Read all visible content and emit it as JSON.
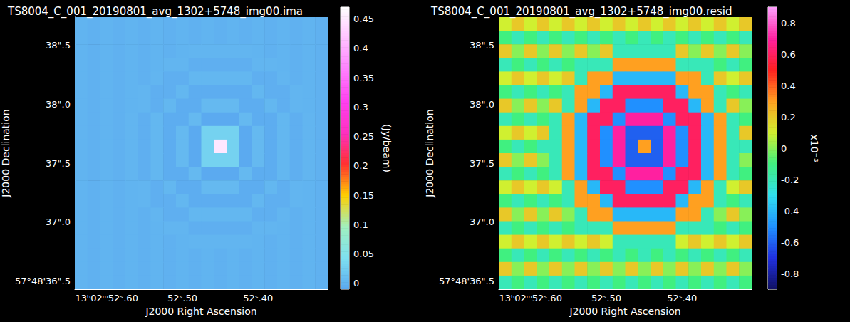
{
  "chart_data": [
    {
      "type": "heatmap",
      "title": "TS8004_C_001_20190801_avg_1302+5748_img00.ima",
      "x_label": "J2000 Right Ascension",
      "y_label": "J2000 Declination",
      "xlim": [
        52.642,
        52.308
      ],
      "ylim": [
        36.43,
        38.74
      ],
      "xticks": [
        {
          "value": 52.6,
          "label": "13ʰ02ᵐ52ˢ.60"
        },
        {
          "value": 52.5,
          "label": "52ˢ.50"
        },
        {
          "value": 52.4,
          "label": "52ˢ.40"
        }
      ],
      "yticks": [
        {
          "value": 36.5,
          "label": "57°48'36\".5"
        },
        {
          "value": 37.0,
          "label": "37\".0"
        },
        {
          "value": 37.5,
          "label": "37\".5"
        },
        {
          "value": 38.0,
          "label": "38\".0"
        },
        {
          "value": 38.5,
          "label": "38\".5"
        }
      ],
      "cells": [
        [
          0.001,
          -0.001,
          0.001,
          -0.001,
          0.001,
          -0.001,
          0.001,
          -0.001,
          0.001,
          -0.001,
          0.001,
          -0.001,
          0.001,
          -0.001,
          0.001,
          -0.001,
          0.001,
          -0.001,
          0.001,
          -0.001
        ],
        [
          0.001,
          -0.001,
          0.001,
          -0.001,
          0.001,
          -0.001,
          0.001,
          -0.001,
          0.001,
          -0.001,
          0.001,
          -0.001,
          0.001,
          -0.001,
          0.001,
          -0.001,
          0.001,
          -0.001,
          0.001,
          -0.001
        ],
        [
          0.001,
          -0.001,
          0.001,
          -0.001,
          0.001,
          -0.001,
          0.001,
          -0.001,
          0.001,
          0.002,
          0.002,
          0.002,
          0.002,
          0.002,
          0.001,
          -0.001,
          0.001,
          -0.001,
          0.001,
          -0.001
        ],
        [
          0.001,
          -0.001,
          0.001,
          -0.001,
          0.001,
          -0.001,
          0.001,
          0.002,
          0.002,
          -0.003,
          -0.003,
          -0.003,
          -0.003,
          -0.003,
          0.002,
          0.002,
          0.001,
          -0.001,
          0.001,
          -0.001
        ],
        [
          0.001,
          -0.001,
          0.001,
          -0.001,
          0.001,
          -0.001,
          0.002,
          -0.003,
          -0.003,
          0.004,
          0.004,
          0.004,
          0.004,
          0.004,
          -0.003,
          -0.003,
          0.002,
          -0.001,
          0.001,
          -0.001
        ],
        [
          0.001,
          -0.001,
          0.001,
          -0.001,
          0.001,
          0.002,
          -0.003,
          -0.003,
          0.004,
          -0.005,
          -0.005,
          -0.005,
          -0.005,
          -0.005,
          0.004,
          -0.003,
          -0.003,
          0.002,
          0.001,
          -0.001
        ],
        [
          0.001,
          -0.001,
          0.001,
          -0.001,
          0.001,
          0.002,
          -0.003,
          0.004,
          -0.005,
          -0.005,
          0.006,
          0.006,
          0.006,
          -0.005,
          -0.005,
          0.004,
          -0.003,
          0.002,
          0.001,
          -0.001
        ],
        [
          0.001,
          -0.001,
          0.001,
          -0.001,
          0.002,
          -0.003,
          0.004,
          -0.005,
          -0.005,
          0.006,
          -0.008,
          -0.008,
          -0.008,
          0.006,
          -0.005,
          -0.005,
          0.004,
          -0.003,
          0.002,
          -0.001
        ],
        [
          0.001,
          -0.001,
          0.001,
          -0.001,
          0.002,
          -0.003,
          0.004,
          -0.005,
          0.006,
          -0.008,
          0.03,
          0.03,
          0.03,
          -0.008,
          0.006,
          -0.005,
          0.004,
          -0.003,
          0.002,
          -0.001
        ],
        [
          0.001,
          -0.001,
          0.001,
          -0.001,
          0.002,
          -0.003,
          0.004,
          -0.005,
          0.006,
          -0.008,
          0.03,
          0.45,
          0.03,
          -0.008,
          0.006,
          -0.005,
          0.004,
          -0.003,
          0.002,
          -0.001
        ],
        [
          0.001,
          -0.001,
          0.001,
          -0.001,
          0.002,
          -0.003,
          0.004,
          -0.005,
          0.006,
          -0.008,
          0.03,
          0.03,
          0.03,
          -0.008,
          0.006,
          -0.005,
          0.004,
          -0.003,
          0.002,
          -0.001
        ],
        [
          0.001,
          -0.001,
          0.001,
          -0.001,
          0.002,
          -0.003,
          0.004,
          -0.005,
          -0.005,
          0.006,
          -0.008,
          -0.008,
          -0.008,
          0.006,
          -0.005,
          -0.005,
          0.004,
          -0.003,
          0.002,
          -0.001
        ],
        [
          0.001,
          -0.001,
          0.001,
          -0.001,
          0.001,
          0.002,
          -0.003,
          0.004,
          -0.005,
          -0.005,
          0.006,
          0.006,
          0.006,
          -0.005,
          -0.005,
          0.004,
          -0.003,
          0.002,
          0.001,
          -0.001
        ],
        [
          0.001,
          -0.001,
          0.001,
          -0.001,
          0.001,
          0.002,
          -0.003,
          -0.003,
          0.004,
          -0.005,
          -0.005,
          -0.005,
          -0.005,
          -0.005,
          0.004,
          -0.003,
          -0.003,
          0.002,
          0.001,
          -0.001
        ],
        [
          0.001,
          -0.001,
          0.001,
          -0.001,
          0.001,
          -0.001,
          0.002,
          -0.003,
          -0.003,
          0.004,
          0.004,
          0.004,
          0.004,
          0.004,
          -0.003,
          -0.003,
          0.002,
          -0.001,
          0.001,
          -0.001
        ],
        [
          0.001,
          -0.001,
          0.001,
          -0.001,
          0.001,
          -0.001,
          0.001,
          0.002,
          0.002,
          -0.003,
          -0.003,
          -0.003,
          -0.003,
          -0.003,
          0.002,
          0.002,
          0.001,
          -0.001,
          0.001,
          -0.001
        ],
        [
          0.001,
          -0.001,
          0.001,
          -0.001,
          0.001,
          -0.001,
          0.001,
          -0.001,
          0.001,
          0.002,
          0.002,
          0.002,
          0.002,
          0.002,
          0.001,
          -0.001,
          0.001,
          -0.001,
          0.001,
          -0.001
        ],
        [
          0.001,
          -0.001,
          0.001,
          -0.001,
          0.001,
          -0.001,
          0.001,
          -0.001,
          0.001,
          -0.001,
          0.001,
          -0.001,
          0.001,
          -0.001,
          0.001,
          -0.001,
          0.001,
          -0.001,
          0.001,
          -0.001
        ],
        [
          0.001,
          -0.001,
          0.001,
          -0.001,
          0.001,
          -0.001,
          0.001,
          -0.001,
          0.001,
          -0.001,
          0.001,
          -0.001,
          0.001,
          -0.001,
          0.001,
          -0.001,
          0.001,
          -0.001,
          0.001,
          -0.001
        ],
        [
          0.001,
          -0.001,
          0.001,
          -0.001,
          0.001,
          -0.001,
          0.001,
          -0.001,
          0.001,
          -0.001,
          0.001,
          -0.001,
          0.001,
          -0.001,
          0.001,
          -0.001,
          0.001,
          -0.001,
          0.001,
          -0.001
        ]
      ],
      "colorbar": {
        "label": "(Jy/beam)",
        "range": [
          -0.01,
          0.47
        ],
        "ticks": [
          0,
          0.05,
          0.1,
          0.15,
          0.2,
          0.25,
          0.3,
          0.35,
          0.4,
          0.45
        ],
        "colors": [
          "#5aa8f0",
          "#7ee0f0",
          "#a0f0c0",
          "#ffd000",
          "#ff3030",
          "#ff30c0",
          "#ff40f0",
          "#ff80ff",
          "#ffc0ff",
          "#ffffff"
        ]
      }
    },
    {
      "type": "heatmap",
      "title": "TS8004_C_001_20190801_avg_1302+5748_img00.resid",
      "x_label": "J2000 Right Ascension",
      "y_label": "J2000 Declination",
      "xlim": [
        52.642,
        52.308
      ],
      "ylim": [
        36.43,
        38.74
      ],
      "xticks": [
        {
          "value": 52.6,
          "label": "13ʰ02ᵐ52ˢ.60"
        },
        {
          "value": 52.5,
          "label": "52ˢ.50"
        },
        {
          "value": 52.4,
          "label": "52ˢ.40"
        }
      ],
      "yticks": [
        {
          "value": 36.5,
          "label": "57°48'36\".5"
        },
        {
          "value": 37.0,
          "label": "37\".0"
        },
        {
          "value": 37.5,
          "label": "37\".5"
        },
        {
          "value": 38.0,
          "label": "38\".0"
        },
        {
          "value": 38.5,
          "label": "38\".5"
        }
      ],
      "cells": [
        [
          0.1,
          0.2,
          0.1,
          0.2,
          0.1,
          0.2,
          0.1,
          0.2,
          0.1,
          0.2,
          0.1,
          0.2,
          0.1,
          0.2,
          0.1,
          0.2,
          0.1,
          0.2,
          0.1,
          0.2
        ],
        [
          -0.1,
          -0.2,
          -0.1,
          -0.2,
          -0.1,
          -0.2,
          -0.1,
          -0.2,
          -0.1,
          -0.2,
          -0.1,
          -0.2,
          -0.1,
          -0.2,
          -0.1,
          -0.2,
          -0.1,
          -0.2,
          -0.1,
          -0.2
        ],
        [
          0.2,
          0,
          0.2,
          0,
          0.2,
          0,
          0.2,
          0,
          0.2,
          -0.2,
          -0.2,
          -0.2,
          -0.2,
          -0.2,
          0.2,
          0,
          0.2,
          0,
          0.2,
          0
        ],
        [
          -0.2,
          -0.1,
          -0.2,
          -0.1,
          -0.2,
          -0.1,
          -0.2,
          -0.2,
          -0.2,
          0.3,
          0.3,
          0.3,
          0.3,
          0.3,
          -0.2,
          -0.2,
          -0.2,
          -0.1,
          -0.2,
          -0.1
        ],
        [
          0.1,
          0.2,
          0.1,
          0.2,
          0.1,
          0.2,
          -0.2,
          0.3,
          0.3,
          -0.4,
          -0.4,
          -0.4,
          -0.4,
          -0.4,
          0.3,
          0.3,
          -0.2,
          0.2,
          0.1,
          0.2
        ],
        [
          -0.1,
          -0.2,
          -0.1,
          -0.2,
          -0.1,
          -0.2,
          0.3,
          0.3,
          -0.4,
          0.6,
          0.6,
          0.6,
          0.6,
          0.6,
          -0.4,
          0.3,
          0.3,
          -0.2,
          -0.1,
          -0.2
        ],
        [
          0.2,
          0,
          0.2,
          0,
          0.2,
          -0.2,
          0.3,
          -0.4,
          0.6,
          0.6,
          -0.5,
          -0.5,
          -0.5,
          0.6,
          0.6,
          -0.4,
          0.3,
          -0.2,
          0.2,
          0
        ],
        [
          -0.2,
          -0.1,
          -0.2,
          -0.1,
          -0.2,
          0.3,
          -0.4,
          0.6,
          0.6,
          -0.5,
          0.7,
          0.7,
          0.7,
          -0.5,
          0.6,
          0.6,
          -0.4,
          0.3,
          -0.2,
          -0.1
        ],
        [
          0.1,
          0.2,
          0.1,
          0.2,
          -0.2,
          0.3,
          -0.4,
          0.6,
          -0.5,
          0.7,
          -0.6,
          -0.6,
          -0.6,
          0.7,
          -0.5,
          0.6,
          -0.4,
          0.3,
          -0.2,
          0.2
        ],
        [
          -0.1,
          -0.2,
          -0.1,
          -0.2,
          -0.2,
          0.3,
          -0.4,
          0.6,
          -0.5,
          0.7,
          -0.6,
          0.3,
          -0.6,
          0.7,
          -0.5,
          0.6,
          -0.4,
          0.3,
          -0.2,
          -0.2
        ],
        [
          0.2,
          0,
          0.2,
          0,
          -0.2,
          0.3,
          -0.4,
          0.6,
          -0.5,
          0.7,
          -0.6,
          -0.6,
          -0.6,
          0.7,
          -0.5,
          0.6,
          -0.4,
          0.3,
          -0.2,
          0
        ],
        [
          -0.2,
          -0.1,
          -0.2,
          -0.1,
          -0.2,
          0.3,
          -0.4,
          0.6,
          0.6,
          -0.5,
          0.7,
          0.7,
          0.7,
          -0.5,
          0.6,
          0.6,
          -0.4,
          0.3,
          -0.2,
          -0.1
        ],
        [
          0.1,
          0.2,
          0.1,
          0.2,
          0.1,
          -0.2,
          0.3,
          -0.4,
          0.6,
          0.6,
          -0.5,
          -0.5,
          -0.5,
          0.6,
          0.6,
          -0.4,
          0.3,
          -0.2,
          0.1,
          0.2
        ],
        [
          -0.1,
          -0.2,
          -0.1,
          -0.2,
          -0.1,
          -0.2,
          0.3,
          0.3,
          -0.4,
          0.6,
          0.6,
          0.6,
          0.6,
          0.6,
          -0.4,
          0.3,
          0.3,
          -0.2,
          -0.1,
          -0.2
        ],
        [
          0.2,
          0,
          0.2,
          0,
          0.2,
          0,
          -0.2,
          0.3,
          0.3,
          -0.4,
          -0.4,
          -0.4,
          -0.4,
          -0.4,
          0.3,
          0.3,
          -0.2,
          0,
          0.2,
          0
        ],
        [
          -0.2,
          -0.1,
          -0.2,
          -0.1,
          -0.2,
          -0.1,
          -0.2,
          -0.2,
          -0.2,
          0.3,
          0.3,
          0.3,
          0.3,
          0.3,
          -0.2,
          -0.2,
          -0.2,
          -0.1,
          -0.2,
          -0.1
        ],
        [
          0.1,
          0.2,
          0.1,
          0.2,
          0.1,
          0.2,
          0.1,
          0.2,
          0.1,
          -0.2,
          -0.2,
          -0.2,
          -0.2,
          -0.2,
          0.1,
          0.2,
          0.1,
          0.2,
          0.1,
          0.2
        ],
        [
          -0.1,
          -0.2,
          -0.1,
          -0.2,
          -0.1,
          -0.2,
          -0.1,
          -0.2,
          -0.1,
          -0.2,
          -0.1,
          -0.2,
          -0.1,
          -0.2,
          -0.1,
          -0.2,
          -0.1,
          -0.2,
          -0.1,
          -0.2
        ],
        [
          0.2,
          0,
          0.2,
          0,
          0.2,
          0,
          0.2,
          0,
          0.2,
          0,
          0.2,
          0,
          0.2,
          0,
          0.2,
          0,
          0.2,
          0,
          0.2,
          0
        ],
        [
          -0.2,
          -0.1,
          -0.2,
          -0.1,
          -0.2,
          -0.1,
          -0.2,
          -0.1,
          -0.2,
          -0.1,
          -0.2,
          -0.1,
          -0.2,
          -0.1,
          -0.2,
          -0.1,
          -0.2,
          -0.1,
          -0.2,
          -0.1
        ]
      ],
      "colorbar": {
        "label": "x10⁻³",
        "range": [
          -0.9,
          0.9
        ],
        "ticks": [
          -0.8,
          -0.6,
          -0.4,
          -0.2,
          0,
          0.2,
          0.4,
          0.6,
          0.8
        ],
        "colors": [
          "#101060",
          "#2030e0",
          "#2090ff",
          "#30e0f0",
          "#40f080",
          "#d0f030",
          "#ffa020",
          "#ff2020",
          "#ff20a0",
          "#ffa0ff"
        ]
      }
    }
  ]
}
